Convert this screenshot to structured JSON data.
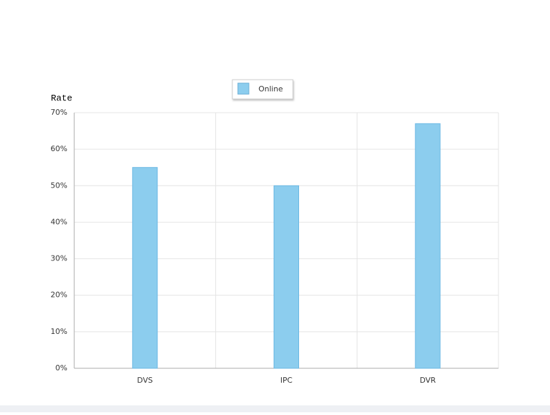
{
  "chart_data": {
    "type": "bar",
    "y_label": "Rate",
    "categories": [
      "DVS",
      "IPC",
      "DVR"
    ],
    "series": [
      {
        "name": "Online",
        "color": "#8ccdee",
        "values": [
          55,
          50,
          67
        ]
      }
    ],
    "ylim": [
      0,
      70
    ],
    "yticks": [
      {
        "value": 0,
        "label": "0%"
      },
      {
        "value": 10,
        "label": "10%"
      },
      {
        "value": 20,
        "label": "20%"
      },
      {
        "value": 30,
        "label": "30%"
      },
      {
        "value": 40,
        "label": "40%"
      },
      {
        "value": 50,
        "label": "50%"
      },
      {
        "value": 60,
        "label": "60%"
      },
      {
        "value": 70,
        "label": "70%"
      }
    ],
    "grid": true,
    "legend_position": "top"
  }
}
